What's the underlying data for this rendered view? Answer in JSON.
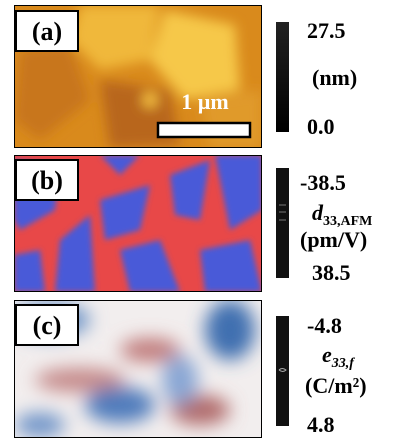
{
  "panels": [
    {
      "label": "(a)",
      "scale_top": "27.5",
      "unit": "(nm)",
      "scale_bottom": "0.0",
      "scale_bar": "1 µm"
    },
    {
      "label": "(b)",
      "scale_top": "-38.5",
      "quantity": {
        "main": "d",
        "sub": "33,AFM"
      },
      "unit": "(pm/V)",
      "scale_bottom": "38.5"
    },
    {
      "label": "(c)",
      "scale_top": "-4.8",
      "quantity": {
        "main": "e",
        "sub": "33,f"
      },
      "unit": "(C/m²)",
      "scale_bottom": "4.8"
    }
  ]
}
